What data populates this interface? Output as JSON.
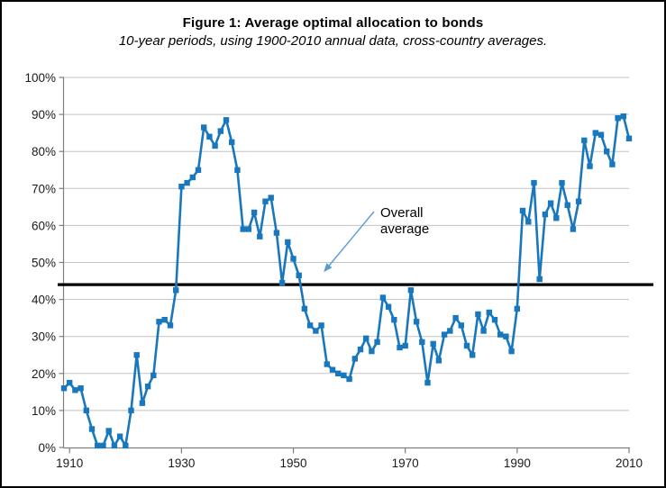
{
  "figure": {
    "title": "Figure 1: Average optimal allocation to bonds",
    "subtitle": "10-year periods, using 1900-2010 annual data, cross-country averages."
  },
  "annotation": {
    "line1": "Overall",
    "line2": "average"
  },
  "chart_data": {
    "type": "line",
    "title": "Figure 1: Average optimal allocation to bonds",
    "subtitle": "10-year periods, using 1900-2010 annual data, cross-country averages.",
    "xlabel": "",
    "ylabel": "",
    "ylim": [
      0,
      100
    ],
    "grid": true,
    "legend_position": "none",
    "marker": "square",
    "overall_average": 44,
    "overall_average_label": "Overall average",
    "yticks": [
      "0%",
      "10%",
      "20%",
      "30%",
      "40%",
      "50%",
      "60%",
      "70%",
      "80%",
      "90%",
      "100%"
    ],
    "xticks": [
      1910,
      1930,
      1950,
      1970,
      1990,
      2010
    ],
    "x": [
      1909,
      1910,
      1911,
      1912,
      1913,
      1914,
      1915,
      1916,
      1917,
      1918,
      1919,
      1920,
      1921,
      1922,
      1923,
      1924,
      1925,
      1926,
      1927,
      1928,
      1929,
      1930,
      1931,
      1932,
      1933,
      1934,
      1935,
      1936,
      1937,
      1938,
      1939,
      1940,
      1941,
      1942,
      1943,
      1944,
      1945,
      1946,
      1947,
      1948,
      1949,
      1950,
      1951,
      1952,
      1953,
      1954,
      1955,
      1956,
      1957,
      1958,
      1959,
      1960,
      1961,
      1962,
      1963,
      1964,
      1965,
      1966,
      1967,
      1968,
      1969,
      1970,
      1971,
      1972,
      1973,
      1974,
      1975,
      1976,
      1977,
      1978,
      1979,
      1980,
      1981,
      1982,
      1983,
      1984,
      1985,
      1986,
      1987,
      1988,
      1989,
      1990,
      1991,
      1992,
      1993,
      1994,
      1995,
      1996,
      1997,
      1998,
      1999,
      2000,
      2001,
      2002,
      2003,
      2004,
      2005,
      2006,
      2007,
      2008,
      2009,
      2010
    ],
    "series": [
      {
        "name": "Average optimal allocation to bonds",
        "color": "#1877BD",
        "values": [
          16,
          17.5,
          15.5,
          16,
          10,
          5,
          0.5,
          0.5,
          4.5,
          0.5,
          3,
          0.5,
          10,
          25,
          12,
          16.5,
          19.5,
          34,
          34.5,
          33,
          42.5,
          70.5,
          71.5,
          73,
          75,
          86.5,
          84,
          81.5,
          85.5,
          88.5,
          82.5,
          75,
          59,
          59,
          63.5,
          57,
          66.5,
          67.5,
          58,
          44.5,
          55.5,
          51,
          46.5,
          37.5,
          33,
          31.5,
          33,
          22.5,
          21,
          20,
          19.5,
          18.5,
          24,
          26.5,
          29.5,
          26,
          28.5,
          40.5,
          38,
          34.5,
          27,
          27.5,
          42.5,
          34,
          28.5,
          17.5,
          28,
          23.5,
          30.5,
          31.5,
          35,
          33,
          27.5,
          25,
          36,
          31.5,
          36.5,
          34.5,
          30.5,
          30,
          26,
          37.5,
          64,
          61,
          71.5,
          45.5,
          63,
          66,
          62,
          71.5,
          65.5,
          59,
          66.5,
          83,
          76,
          85,
          84.5,
          80,
          76.5,
          89,
          89.5,
          83.5
        ]
      }
    ],
    "colors": {
      "series": "#1877BD",
      "average_line": "#000000",
      "gridline": "#C3C3C3",
      "axis": "#7F7F7F",
      "arrow": "#5B9BD5",
      "tick_text": "#1A1A1A"
    }
  }
}
